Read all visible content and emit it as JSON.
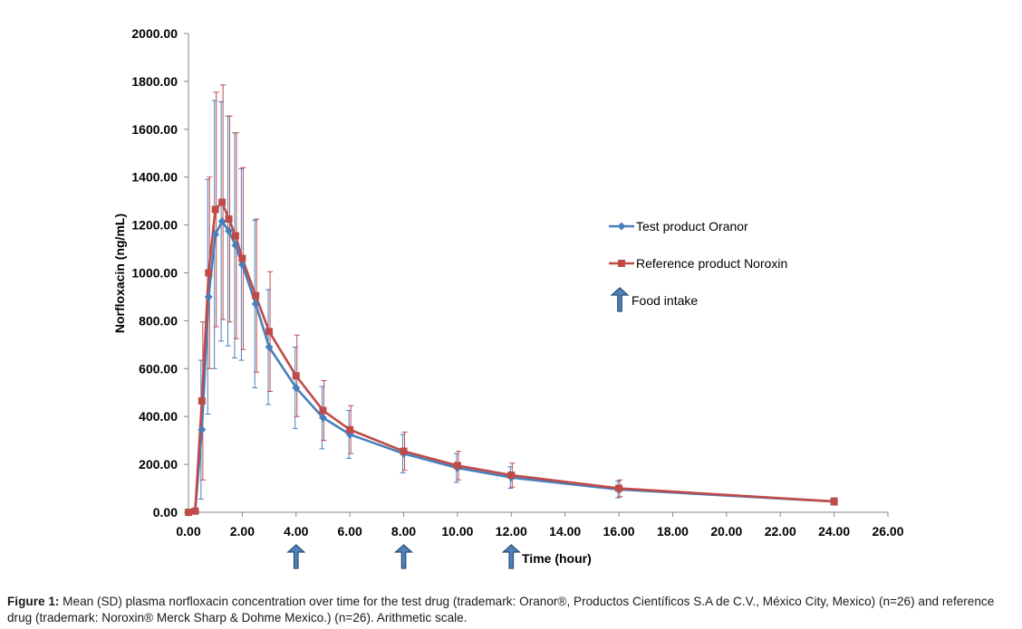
{
  "chart_data": {
    "type": "line",
    "title": "",
    "xlabel": "Time (hour)",
    "ylabel": "Norfloxacin (ng/mL)",
    "xlim": [
      0,
      26
    ],
    "ylim": [
      0,
      2000
    ],
    "x_ticks": [
      "0.00",
      "2.00",
      "4.00",
      "6.00",
      "8.00",
      "10.00",
      "12.00",
      "14.00",
      "16.00",
      "18.00",
      "20.00",
      "22.00",
      "24.00",
      "26.00"
    ],
    "y_ticks": [
      "0.00",
      "200.00",
      "400.00",
      "600.00",
      "800.00",
      "1000.00",
      "1200.00",
      "1400.00",
      "1600.00",
      "1800.00",
      "2000.00"
    ],
    "grid": false,
    "legend_position": "right",
    "series": [
      {
        "name": "Test product Oranor",
        "color": "#4a7ebb",
        "marker": "diamond",
        "x": [
          0,
          0.25,
          0.5,
          0.75,
          1.0,
          1.25,
          1.5,
          1.75,
          2.0,
          2.5,
          3.0,
          4.0,
          5.0,
          6.0,
          8.0,
          10.0,
          12.0,
          16.0,
          24.0
        ],
        "y": [
          0,
          5,
          345,
          900,
          1160,
          1215,
          1175,
          1115,
          1035,
          870,
          690,
          520,
          395,
          325,
          245,
          185,
          145,
          95,
          45
        ],
        "sd": [
          0,
          3,
          290,
          490,
          560,
          500,
          480,
          470,
          400,
          350,
          240,
          170,
          130,
          100,
          80,
          60,
          45,
          35,
          15
        ]
      },
      {
        "name": "Reference product Noroxin",
        "color": "#be4b48",
        "marker": "square",
        "x": [
          0,
          0.25,
          0.5,
          0.75,
          1.0,
          1.25,
          1.5,
          1.75,
          2.0,
          2.5,
          3.0,
          4.0,
          5.0,
          6.0,
          8.0,
          10.0,
          12.0,
          16.0,
          24.0
        ],
        "y": [
          0,
          5,
          465,
          1000,
          1265,
          1295,
          1225,
          1155,
          1060,
          905,
          755,
          570,
          425,
          345,
          255,
          195,
          155,
          100,
          45
        ],
        "sd": [
          0,
          3,
          330,
          400,
          490,
          490,
          430,
          430,
          380,
          320,
          250,
          170,
          125,
          100,
          80,
          60,
          50,
          35,
          15
        ]
      }
    ],
    "annotations": {
      "food_intake_label": "Food intake",
      "food_intake_times": [
        4,
        8,
        12
      ]
    }
  },
  "caption": {
    "label": "Figure 1:",
    "text": " Mean (SD) plasma norfloxacin concentration over time for the test drug (trademark: Oranor®, Productos Científicos S.A de C.V., México City, Mexico) (n=26) and reference drug (trademark: Noroxin® Merck Sharp & Dohme Mexico.) (n=26). Arithmetic scale."
  }
}
